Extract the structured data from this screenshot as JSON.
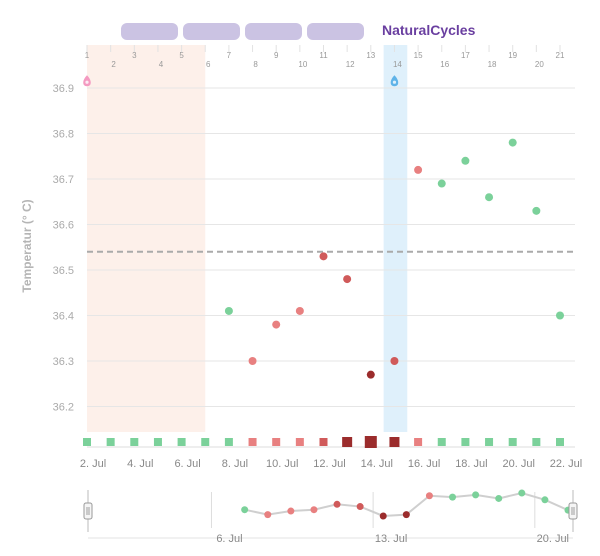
{
  "brand": "NaturalCycles",
  "nav_pills": [
    "",
    "",
    "",
    ""
  ],
  "chart_data": {
    "type": "scatter",
    "ylabel": "Temperatur (° C)",
    "ylim": [
      36.12,
      36.94
    ],
    "yticks": [
      36.2,
      36.3,
      36.4,
      36.5,
      36.6,
      36.7,
      36.8,
      36.9
    ],
    "cycle_days": [
      1,
      2,
      3,
      4,
      5,
      6,
      7,
      8,
      9,
      10,
      11,
      12,
      13,
      14,
      15,
      16,
      17,
      18,
      19,
      20,
      21
    ],
    "date_ticks": [
      {
        "day": 1,
        "label": "2. Jul"
      },
      {
        "day": 3,
        "label": "4. Jul"
      },
      {
        "day": 5,
        "label": "6. Jul"
      },
      {
        "day": 7,
        "label": "8. Jul"
      },
      {
        "day": 9,
        "label": "10. Jul"
      },
      {
        "day": 11,
        "label": "12. Jul"
      },
      {
        "day": 13,
        "label": "14. Jul"
      },
      {
        "day": 15,
        "label": "16. Jul"
      },
      {
        "day": 17,
        "label": "18. Jul"
      },
      {
        "day": 19,
        "label": "20. Jul"
      },
      {
        "day": 21,
        "label": "22. Jul"
      }
    ],
    "coverline": 36.54,
    "period_days": [
      1,
      5
    ],
    "ovulation_day": 14,
    "colors": {
      "green": "#7bd19a",
      "light_red": "#e88080",
      "red": "#d05a5a",
      "dark_red": "#9b2c2c",
      "period_band": "#fdf0ea",
      "ovulation_band": "#dff0fb",
      "pink_drop": "#f49ac1",
      "blue_drop": "#5fb3e8",
      "grid": "#e6e6e6",
      "coverline": "#aaaaaa"
    },
    "points": [
      {
        "day": 7,
        "temp": 36.41,
        "color": "green"
      },
      {
        "day": 8,
        "temp": 36.3,
        "color": "light_red"
      },
      {
        "day": 9,
        "temp": 36.38,
        "color": "light_red"
      },
      {
        "day": 10,
        "temp": 36.41,
        "color": "light_red"
      },
      {
        "day": 11,
        "temp": 36.53,
        "color": "red"
      },
      {
        "day": 12,
        "temp": 36.48,
        "color": "red"
      },
      {
        "day": 13,
        "temp": 36.27,
        "color": "dark_red"
      },
      {
        "day": 14,
        "temp": 36.3,
        "color": "red"
      },
      {
        "day": 15,
        "temp": 36.72,
        "color": "light_red"
      },
      {
        "day": 16,
        "temp": 36.69,
        "color": "green"
      },
      {
        "day": 17,
        "temp": 36.74,
        "color": "green"
      },
      {
        "day": 18,
        "temp": 36.66,
        "color": "green"
      },
      {
        "day": 19,
        "temp": 36.78,
        "color": "green"
      },
      {
        "day": 20,
        "temp": 36.63,
        "color": "green"
      },
      {
        "day": 21,
        "temp": 36.4,
        "color": "green"
      }
    ],
    "drops": [
      {
        "day": 1,
        "temp": 36.86,
        "color": "pink_drop"
      },
      {
        "day": 14,
        "temp": 36.86,
        "color": "blue_drop"
      }
    ],
    "day_markers": [
      {
        "day": 1,
        "color": "green",
        "size": "small"
      },
      {
        "day": 2,
        "color": "green",
        "size": "small"
      },
      {
        "day": 3,
        "color": "green",
        "size": "small"
      },
      {
        "day": 4,
        "color": "green",
        "size": "small"
      },
      {
        "day": 5,
        "color": "green",
        "size": "small"
      },
      {
        "day": 6,
        "color": "green",
        "size": "small"
      },
      {
        "day": 7,
        "color": "green",
        "size": "small"
      },
      {
        "day": 8,
        "color": "light_red",
        "size": "small"
      },
      {
        "day": 9,
        "color": "light_red",
        "size": "small"
      },
      {
        "day": 10,
        "color": "light_red",
        "size": "small"
      },
      {
        "day": 11,
        "color": "red",
        "size": "small"
      },
      {
        "day": 12,
        "color": "dark_red",
        "size": "medium"
      },
      {
        "day": 13,
        "color": "dark_red",
        "size": "large"
      },
      {
        "day": 14,
        "color": "dark_red",
        "size": "medium"
      },
      {
        "day": 15,
        "color": "light_red",
        "size": "small"
      },
      {
        "day": 16,
        "color": "green",
        "size": "small"
      },
      {
        "day": 17,
        "color": "green",
        "size": "small"
      },
      {
        "day": 18,
        "color": "green",
        "size": "small"
      },
      {
        "day": 19,
        "color": "green",
        "size": "small"
      },
      {
        "day": 20,
        "color": "green",
        "size": "small"
      },
      {
        "day": 21,
        "color": "green",
        "size": "small"
      }
    ],
    "navigator": {
      "labels": [
        {
          "day": 5,
          "label": "6. Jul"
        },
        {
          "day": 12,
          "label": "13. Jul"
        },
        {
          "day": 19,
          "label": "20. Jul"
        }
      ],
      "range_days": [
        0,
        21
      ],
      "points": [
        {
          "day": 7,
          "temp": 36.41,
          "color": "green"
        },
        {
          "day": 8,
          "temp": 36.3,
          "color": "light_red"
        },
        {
          "day": 9,
          "temp": 36.38,
          "color": "light_red"
        },
        {
          "day": 10,
          "temp": 36.41,
          "color": "light_red"
        },
        {
          "day": 11,
          "temp": 36.53,
          "color": "red"
        },
        {
          "day": 12,
          "temp": 36.48,
          "color": "red"
        },
        {
          "day": 13,
          "temp": 36.27,
          "color": "dark_red"
        },
        {
          "day": 14,
          "temp": 36.3,
          "color": "dark_red"
        },
        {
          "day": 15,
          "temp": 36.72,
          "color": "light_red"
        },
        {
          "day": 16,
          "temp": 36.69,
          "color": "green"
        },
        {
          "day": 17,
          "temp": 36.74,
          "color": "green"
        },
        {
          "day": 18,
          "temp": 36.66,
          "color": "green"
        },
        {
          "day": 19,
          "temp": 36.78,
          "color": "green"
        },
        {
          "day": 20,
          "temp": 36.63,
          "color": "green"
        },
        {
          "day": 21,
          "temp": 36.4,
          "color": "green"
        }
      ]
    }
  }
}
